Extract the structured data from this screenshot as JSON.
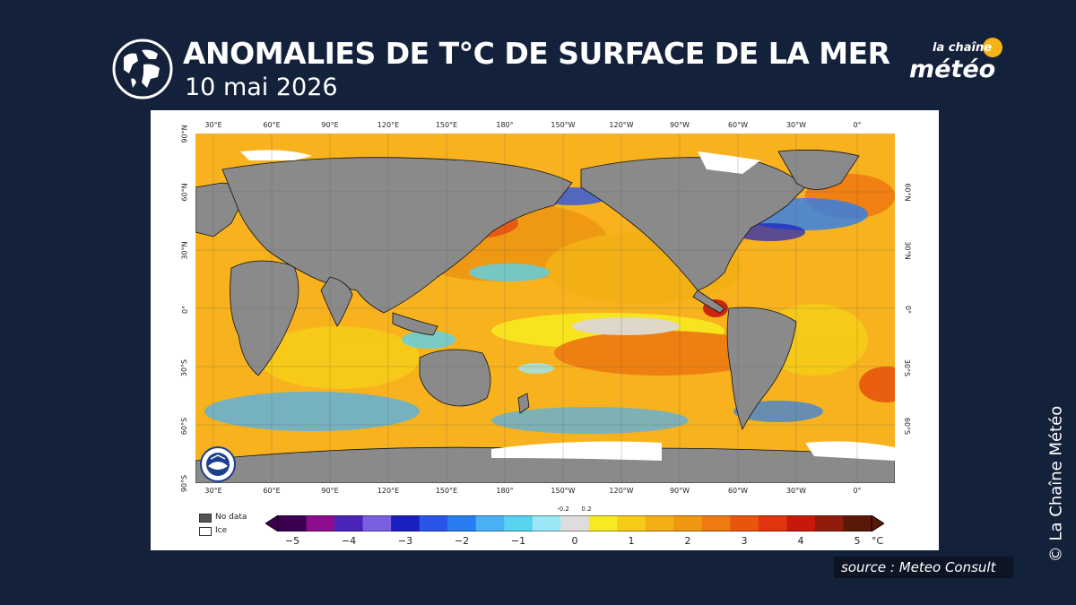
{
  "header": {
    "title": "ANOMALIES DE T°C DE SURFACE DE LA MER",
    "date": "10 mai 2026",
    "icon": "globe-icon"
  },
  "brand": {
    "logo_top": "la chaîne",
    "logo_main": "météo",
    "sun_color": "#f6b417"
  },
  "map": {
    "lon_labels": [
      "30°E",
      "60°E",
      "90°E",
      "120°E",
      "150°E",
      "180°",
      "150°W",
      "120°W",
      "90°W",
      "60°W",
      "30°W",
      "0°"
    ],
    "lat_labels_left": [
      "90°N",
      "60°N",
      "30°N",
      "0°",
      "30°S",
      "60°S",
      "90°S"
    ],
    "lat_labels_right": [
      "60°N",
      "30°N",
      "0°",
      "30°S",
      "60°S"
    ],
    "land_color": "#8a8a8a",
    "ocean_base_color": "#f7b21e",
    "ice_color": "#ffffff",
    "agency_logo": "noaa-logo"
  },
  "legend": {
    "no_data": "No data",
    "ice": "Ice"
  },
  "colorbar": {
    "ticks": [
      "−5",
      "−4",
      "−3",
      "−2",
      "−1",
      "0",
      "1",
      "2",
      "3",
      "4",
      "5"
    ],
    "small_ticks": [
      "-0.2",
      "0.2"
    ],
    "unit": "°C",
    "colors": [
      "#3d0050",
      "#8e0d8e",
      "#4a23b8",
      "#7a60e0",
      "#1a20c0",
      "#2a55e8",
      "#2a7df0",
      "#4ab0f5",
      "#57d2ef",
      "#9be6f5",
      "#dddddd",
      "#f8ea20",
      "#f6cc18",
      "#f3b015",
      "#ef9612",
      "#ee7a10",
      "#e8560e",
      "#e1340f",
      "#c8180c",
      "#901a0c",
      "#5a1808"
    ]
  },
  "footer": {
    "source": "source : Meteo Consult",
    "copyright": "© La Chaîne Météo"
  }
}
